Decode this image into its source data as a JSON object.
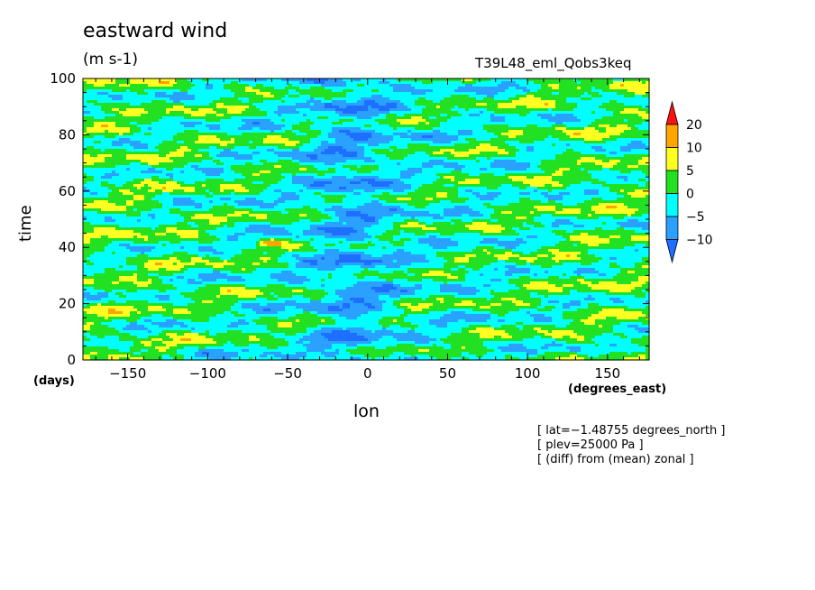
{
  "chart_data": {
    "type": "heatmap",
    "title": "eastward wind",
    "units_label": "(m s-1)",
    "run_label": "T39L48_eml_Qobs3keq",
    "xlabel": "lon",
    "ylabel": "time",
    "x_unit_label": "(degrees_east)",
    "y_unit_label": "(days)",
    "xlim": [
      -178,
      176
    ],
    "ylim": [
      0,
      100
    ],
    "x_ticks": [
      -150,
      -100,
      -50,
      0,
      50,
      100,
      150
    ],
    "x_tick_labels": [
      "−150",
      "−100",
      "−50",
      "0",
      "50",
      "100",
      "150"
    ],
    "y_ticks": [
      0,
      20,
      40,
      60,
      80,
      100
    ],
    "y_tick_labels": [
      "0",
      "20",
      "40",
      "60",
      "80",
      "100"
    ],
    "levels": [
      -10,
      -5,
      0,
      5,
      10,
      20
    ],
    "level_labels": [
      "−10",
      "−5",
      "0",
      "5",
      "10",
      "20"
    ],
    "colors": [
      "#1e6eff",
      "#2aa0ff",
      "#00ffff",
      "#22e022",
      "#ffff22",
      "#ffa500",
      "#ff1111"
    ],
    "notes": [
      "[ lat=−1.48755 degrees_north ]",
      "[ plev=25000 Pa ]",
      "[ (diff) from (mean) zonal ]"
    ],
    "grid": false,
    "legend_position": "right"
  }
}
